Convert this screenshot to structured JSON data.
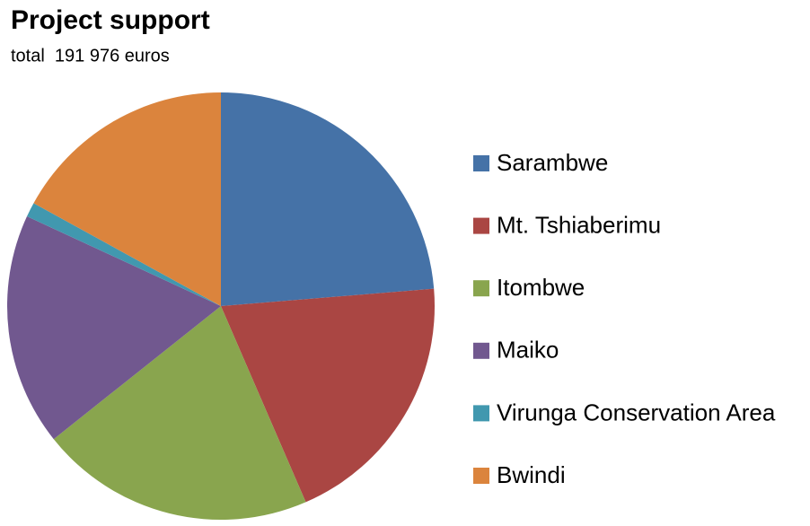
{
  "chart_data": {
    "type": "pie",
    "title": "Project support",
    "subtitle": "total  191 976 euros",
    "categories": [
      "Sarambwe",
      "Mt. Tshiaberimu",
      "Itombwe",
      "Maiko",
      "Virunga Conservation Area",
      "Bwindi"
    ],
    "values": [
      23.7,
      19.8,
      20.8,
      17.6,
      1.1,
      17.0
    ],
    "colors": [
      "#4572a7",
      "#aa4643",
      "#89a54e",
      "#71588f",
      "#4198af",
      "#db843d"
    ]
  }
}
